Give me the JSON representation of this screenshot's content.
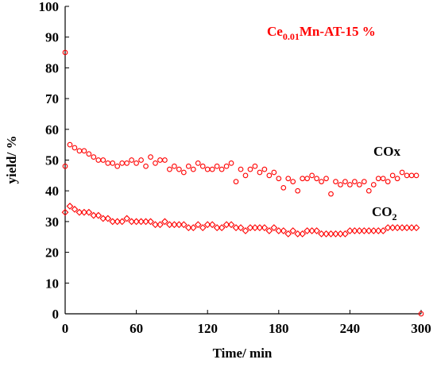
{
  "chart_data": {
    "type": "scatter",
    "x_label": "Time/ min",
    "y_label": "yield/ %",
    "annotation": [
      "Ce",
      "0.01",
      "Mn-AT-15 %"
    ],
    "annotation_color": "#ff0000",
    "xlim": [
      0,
      300
    ],
    "xticks": [
      0,
      60,
      120,
      180,
      240,
      300
    ],
    "ylim": [
      0,
      100
    ],
    "yticks": [
      0,
      10,
      20,
      30,
      40,
      50,
      60,
      70,
      80,
      90,
      100
    ],
    "grid": false,
    "series": [
      {
        "name": [
          "COx"
        ],
        "color": "#ff0000",
        "marker": "circle",
        "x": [
          0,
          0,
          4,
          8,
          12,
          16,
          20,
          24,
          28,
          32,
          36,
          40,
          44,
          48,
          52,
          56,
          60,
          64,
          68,
          72,
          76,
          80,
          84,
          88,
          92,
          96,
          100,
          104,
          108,
          112,
          116,
          120,
          124,
          128,
          132,
          136,
          140,
          144,
          148,
          152,
          156,
          160,
          164,
          168,
          172,
          176,
          180,
          184,
          188,
          192,
          196,
          200,
          204,
          208,
          212,
          216,
          220,
          224,
          228,
          232,
          236,
          240,
          244,
          248,
          252,
          256,
          260,
          264,
          268,
          272,
          276,
          280,
          284,
          288,
          292,
          296,
          300
        ],
        "values": [
          85,
          48,
          55,
          54,
          53,
          53,
          52,
          51,
          50,
          50,
          49,
          49,
          48,
          49,
          49,
          50,
          49,
          50,
          48,
          51,
          49,
          50,
          50,
          47,
          48,
          47,
          46,
          48,
          47,
          49,
          48,
          47,
          47,
          48,
          47,
          48,
          49,
          43,
          47,
          45,
          47,
          48,
          46,
          47,
          45,
          46,
          44,
          41,
          44,
          43,
          40,
          44,
          44,
          45,
          44,
          43,
          44,
          39,
          43,
          42,
          43,
          42,
          43,
          42,
          43,
          40,
          42,
          44,
          44,
          43,
          45,
          44,
          46,
          45,
          45,
          45,
          0
        ]
      },
      {
        "name": [
          "CO",
          "2"
        ],
        "color": "#ff0000",
        "marker": "diamond",
        "x": [
          0,
          4,
          8,
          12,
          16,
          20,
          24,
          28,
          32,
          36,
          40,
          44,
          48,
          52,
          56,
          60,
          64,
          68,
          72,
          76,
          80,
          84,
          88,
          92,
          96,
          100,
          104,
          108,
          112,
          116,
          120,
          124,
          128,
          132,
          136,
          140,
          144,
          148,
          152,
          156,
          160,
          164,
          168,
          172,
          176,
          180,
          184,
          188,
          192,
          196,
          200,
          204,
          208,
          212,
          216,
          220,
          224,
          228,
          232,
          236,
          240,
          244,
          248,
          252,
          256,
          260,
          264,
          268,
          272,
          276,
          280,
          284,
          288,
          292,
          296
        ],
        "values": [
          33,
          35,
          34,
          33,
          33,
          33,
          32,
          32,
          31,
          31,
          30,
          30,
          30,
          31,
          30,
          30,
          30,
          30,
          30,
          29,
          29,
          30,
          29,
          29,
          29,
          29,
          28,
          28,
          29,
          28,
          29,
          29,
          28,
          28,
          29,
          29,
          28,
          28,
          27,
          28,
          28,
          28,
          28,
          27,
          28,
          27,
          27,
          26,
          27,
          26,
          26,
          27,
          27,
          27,
          26,
          26,
          26,
          26,
          26,
          26,
          27,
          27,
          27,
          27,
          27,
          27,
          27,
          27,
          28,
          28,
          28,
          28,
          28,
          28,
          28
        ]
      }
    ]
  }
}
